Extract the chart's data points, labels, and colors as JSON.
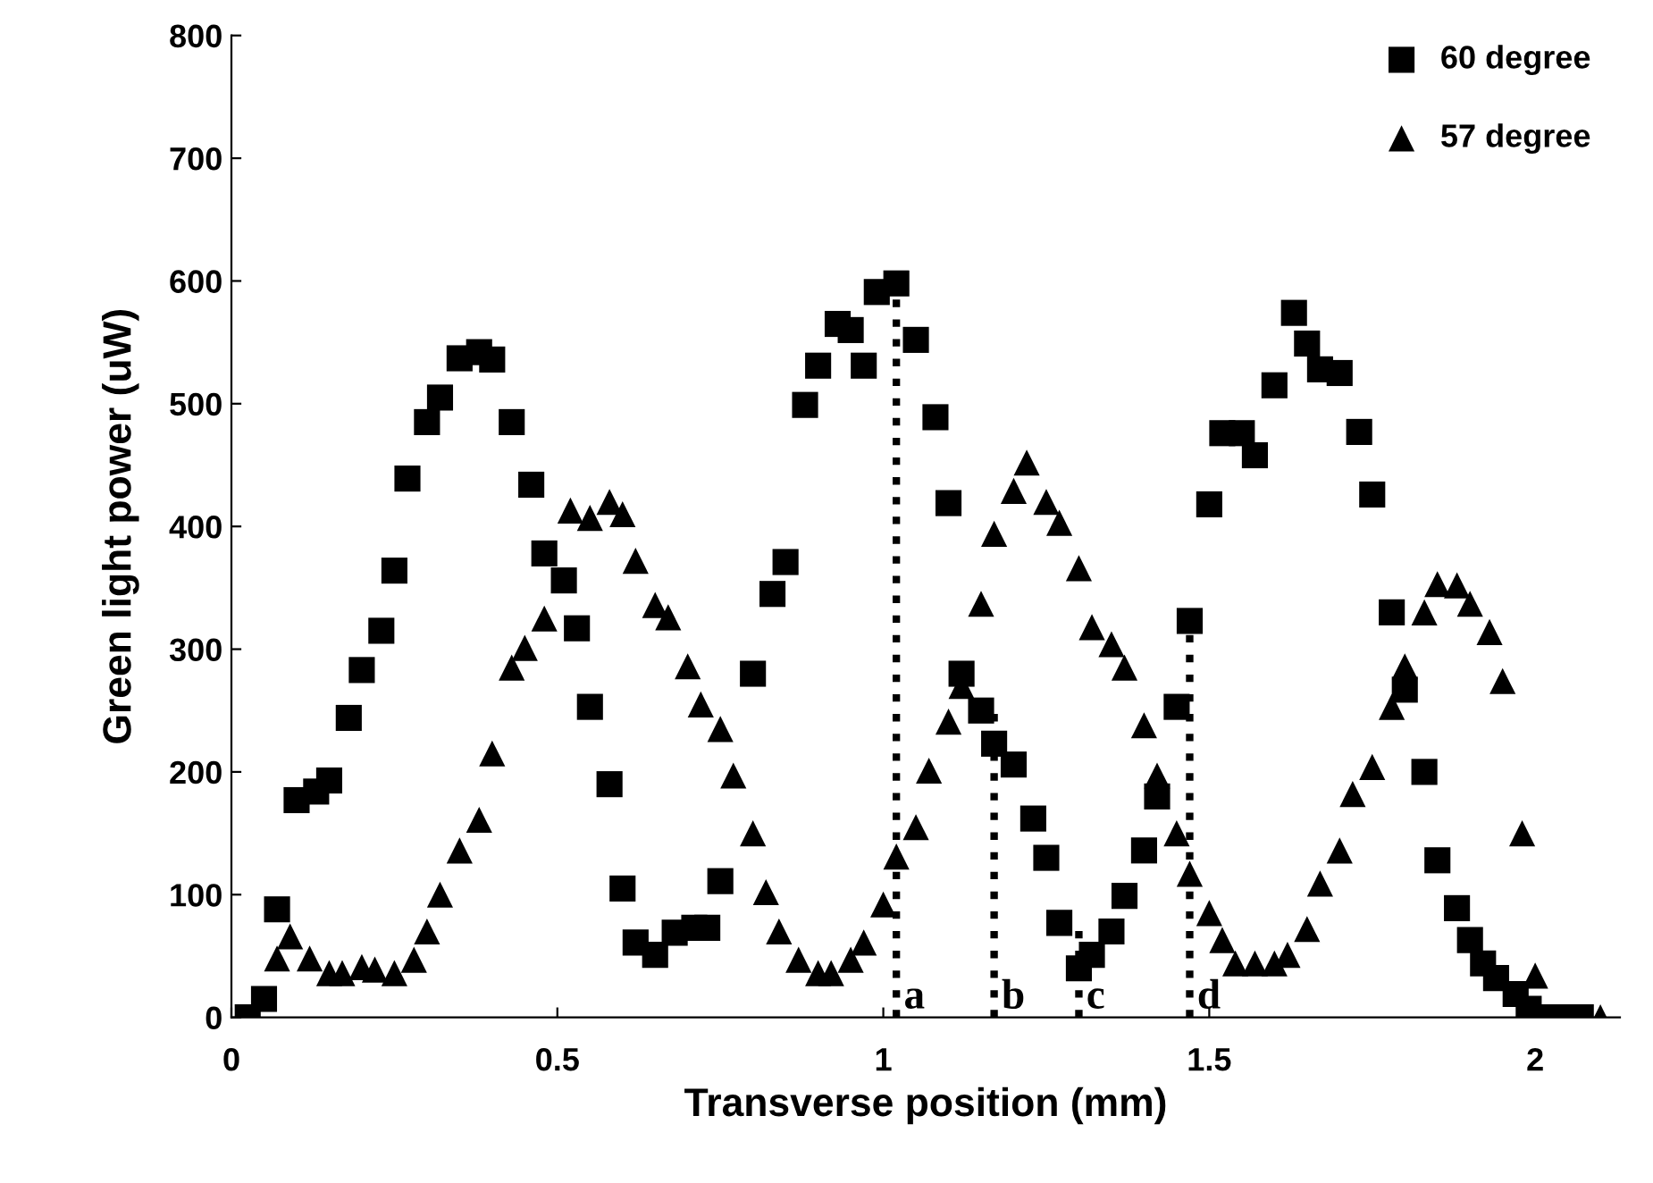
{
  "chart_data": {
    "type": "scatter",
    "xlabel": "Transverse position (mm)",
    "ylabel": "Green light power (uW)",
    "xlim": [
      0,
      2.13
    ],
    "xticks": [
      0,
      0.5,
      1,
      1.5,
      2
    ],
    "ylim": [
      0,
      800
    ],
    "yticks": [
      0,
      100,
      200,
      300,
      400,
      500,
      600,
      700,
      800
    ],
    "grid": false,
    "legend": "top right",
    "series": [
      {
        "name": "60 degree",
        "color": "#000000",
        "marker": "square",
        "x": [
          0.025,
          0.05,
          0.07,
          0.1,
          0.13,
          0.15,
          0.18,
          0.2,
          0.23,
          0.25,
          0.27,
          0.3,
          0.32,
          0.35,
          0.38,
          0.4,
          0.43,
          0.46,
          0.48,
          0.51,
          0.53,
          0.55,
          0.58,
          0.6,
          0.62,
          0.65,
          0.68,
          0.71,
          0.73,
          0.75,
          0.8,
          0.83,
          0.85,
          0.88,
          0.9,
          0.93,
          0.95,
          0.97,
          0.99,
          1.02,
          1.05,
          1.08,
          1.1,
          1.12,
          1.15,
          1.17,
          1.2,
          1.23,
          1.25,
          1.27,
          1.3,
          1.32,
          1.35,
          1.37,
          1.4,
          1.42,
          1.45,
          1.47,
          1.5,
          1.52,
          1.55,
          1.57,
          1.6,
          1.63,
          1.65,
          1.67,
          1.7,
          1.73,
          1.75,
          1.78,
          1.8,
          1.83,
          1.85,
          1.88,
          1.9,
          1.92,
          1.94,
          1.97,
          1.99,
          2.02,
          2.04,
          2.07
        ],
        "values": [
          0,
          15,
          88,
          177,
          184,
          193,
          244,
          283,
          315,
          364,
          439,
          485,
          505,
          537,
          542,
          536,
          485,
          434,
          378,
          356,
          317,
          253,
          190,
          105,
          61,
          51,
          69,
          73,
          73,
          111,
          280,
          345,
          371,
          499,
          531,
          565,
          560,
          531,
          591,
          598,
          552,
          489,
          419,
          280,
          250,
          223,
          206,
          162,
          130,
          77,
          40,
          51,
          70,
          99,
          136,
          180,
          253,
          323,
          418,
          476,
          476,
          458,
          515,
          574,
          549,
          528,
          525,
          477,
          426,
          330,
          267,
          200,
          128,
          89,
          63,
          44,
          32,
          19,
          7,
          0,
          0,
          0
        ]
      },
      {
        "name": "57 degree",
        "color": "#000000",
        "marker": "triangle",
        "x": [
          0.07,
          0.09,
          0.12,
          0.15,
          0.17,
          0.2,
          0.22,
          0.25,
          0.28,
          0.3,
          0.32,
          0.35,
          0.38,
          0.4,
          0.43,
          0.45,
          0.48,
          0.52,
          0.55,
          0.58,
          0.6,
          0.62,
          0.65,
          0.67,
          0.7,
          0.72,
          0.75,
          0.77,
          0.8,
          0.82,
          0.84,
          0.87,
          0.9,
          0.92,
          0.95,
          0.97,
          1.0,
          1.02,
          1.05,
          1.07,
          1.1,
          1.12,
          1.15,
          1.17,
          1.2,
          1.22,
          1.25,
          1.27,
          1.3,
          1.32,
          1.35,
          1.37,
          1.4,
          1.42,
          1.45,
          1.47,
          1.5,
          1.52,
          1.54,
          1.57,
          1.6,
          1.62,
          1.65,
          1.67,
          1.7,
          1.72,
          1.75,
          1.78,
          1.8,
          1.83,
          1.85,
          1.88,
          1.9,
          1.93,
          1.95,
          1.98,
          2.0,
          2.1
        ],
        "values": [
          48,
          66,
          48,
          36,
          36,
          41,
          39,
          36,
          47,
          70,
          100,
          136,
          161,
          215,
          285,
          301,
          325,
          413,
          407,
          420,
          410,
          372,
          336,
          326,
          286,
          255,
          235,
          197,
          150,
          102,
          70,
          47,
          36,
          36,
          47,
          61,
          92,
          131,
          155,
          201,
          241,
          270,
          337,
          394,
          429,
          452,
          420,
          403,
          366,
          318,
          304,
          285,
          238,
          197,
          150,
          117,
          85,
          63,
          44,
          44,
          44,
          51,
          72,
          109,
          136,
          182,
          204,
          253,
          286,
          330,
          353,
          352,
          337,
          314,
          274,
          150,
          34,
          0
        ]
      },
      {
        "type": "line",
        "line_style": "dotted",
        "color": "#000000",
        "x": [
          1.02,
          1.02
        ],
        "values": [
          0,
          591
        ]
      },
      {
        "type": "line",
        "line_style": "dotted",
        "color": "#000000",
        "x": [
          1.17,
          1.17
        ],
        "values": [
          0,
          250
        ]
      },
      {
        "type": "line",
        "line_style": "dotted",
        "color": "#000000",
        "x": [
          1.3,
          1.3
        ],
        "values": [
          0,
          75
        ]
      },
      {
        "type": "line",
        "line_style": "dotted",
        "color": "#000000",
        "x": [
          1.47,
          1.47
        ],
        "values": [
          0,
          323
        ]
      }
    ],
    "annotations": [
      {
        "text": "a",
        "x": 1.02,
        "y": 0
      },
      {
        "text": "b",
        "x": 1.17,
        "y": 0
      },
      {
        "text": "c",
        "x": 1.3,
        "y": 0
      },
      {
        "text": "d",
        "x": 1.47,
        "y": 0
      }
    ]
  }
}
